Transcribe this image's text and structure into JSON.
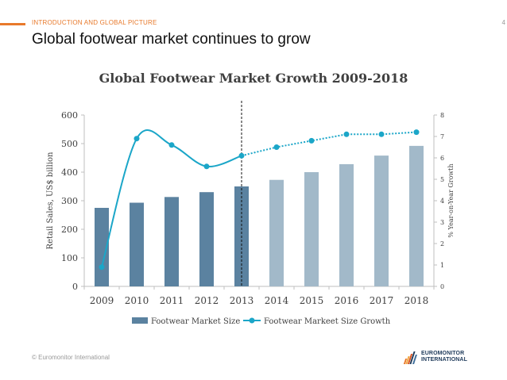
{
  "header": {
    "section_label": "INTRODUCTION AND GLOBAL PICTURE",
    "page_number": "4",
    "title": "Global footwear market continues to grow"
  },
  "footer": {
    "copyright": "© Euromonitor International",
    "logo_line1": "EUROMONITOR",
    "logo_line2": "INTERNATIONAL"
  },
  "colors": {
    "accent": "#e8792b",
    "bar_actual": "#5b82a0",
    "bar_forecast": "#a2b9c9",
    "line": "#1ba6c8"
  },
  "chart_data": {
    "type": "bar",
    "title": "Global Footwear Market Growth 2009-2018",
    "categories": [
      "2009",
      "2010",
      "2011",
      "2012",
      "2013",
      "2014",
      "2015",
      "2016",
      "2017",
      "2018"
    ],
    "forecast_from": "2014",
    "divider_after": "2013",
    "series": [
      {
        "name": "Footwear Market Size",
        "type": "bar",
        "axis": "left",
        "values": [
          275,
          293,
          313,
          330,
          350,
          373,
          400,
          428,
          458,
          492
        ]
      },
      {
        "name": "Footwear Markeet Size Growth",
        "type": "line",
        "axis": "right",
        "values": [
          0.9,
          6.9,
          6.6,
          5.6,
          6.1,
          6.5,
          6.8,
          7.1,
          7.1,
          7.2
        ],
        "solid_until": "2013"
      }
    ],
    "ylabel": "Retail Sales, US$ billion",
    "ylim": [
      0,
      600
    ],
    "yticks": [
      "0",
      "100",
      "200",
      "300",
      "400",
      "500",
      "600"
    ],
    "y2label": "% Year-on-Year Growth",
    "y2lim": [
      0,
      8
    ],
    "y2ticks": [
      "0",
      "1",
      "2",
      "3",
      "4",
      "5",
      "6",
      "7",
      "8"
    ],
    "legend_position": "bottom",
    "grid": false
  }
}
